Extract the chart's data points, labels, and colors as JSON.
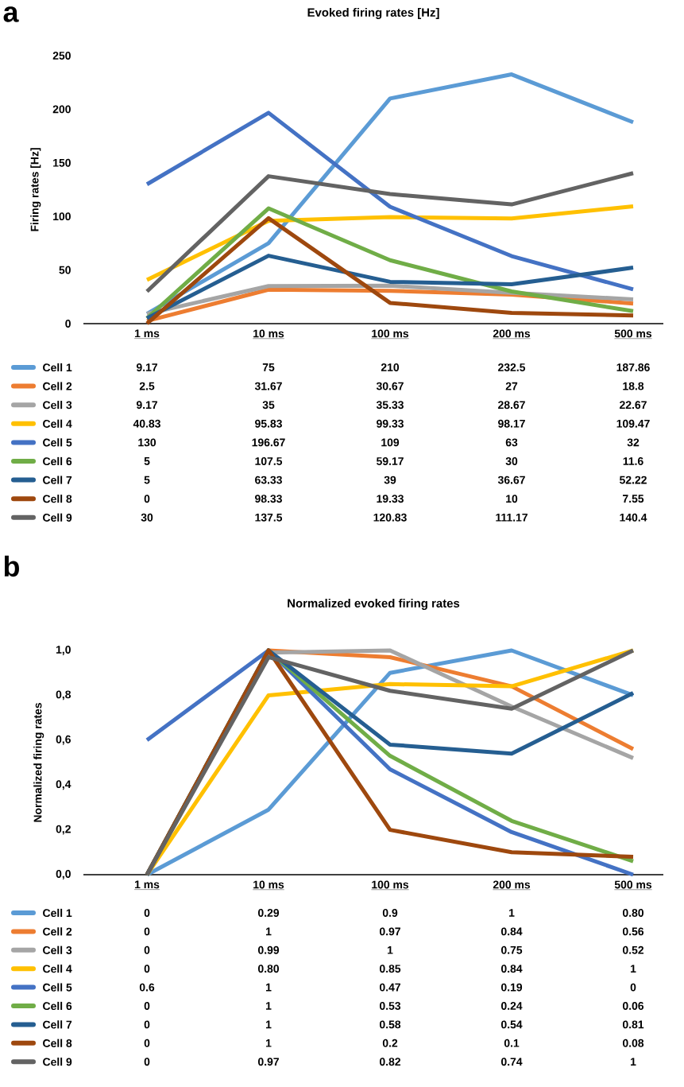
{
  "chart_data": [
    {
      "type": "line",
      "title": "Evoked firing rates [Hz]",
      "ylabel": "Firing rates [Hz]",
      "annotations": [
        "a"
      ],
      "legend": "bottom",
      "categories": [
        "1 ms",
        "10 ms",
        "100 ms",
        "200 ms",
        "500 ms"
      ],
      "ylim": [
        0,
        250
      ],
      "yticks": [
        0,
        50,
        100,
        150,
        200,
        250
      ],
      "series": [
        {
          "name": "Cell 1",
          "color": "#5b9bd5",
          "values": [
            9.17,
            75,
            210,
            232.5,
            187.86
          ],
          "value_labels": [
            "9.17",
            "75",
            "210",
            "232.5",
            "187.86"
          ]
        },
        {
          "name": "Cell 2",
          "color": "#ed7d31",
          "values": [
            2.5,
            31.67,
            30.67,
            27,
            18.8
          ],
          "value_labels": [
            "2.5",
            "31.67",
            "30.67",
            "27",
            "18.8"
          ]
        },
        {
          "name": "Cell 3",
          "color": "#a5a5a5",
          "values": [
            9.17,
            35,
            35.33,
            28.67,
            22.67
          ],
          "value_labels": [
            "9.17",
            "35",
            "35.33",
            "28.67",
            "22.67"
          ]
        },
        {
          "name": "Cell 4",
          "color": "#ffc000",
          "values": [
            40.83,
            95.83,
            99.33,
            98.17,
            109.47
          ],
          "value_labels": [
            "40.83",
            "95.83",
            "99.33",
            "98.17",
            "109.47"
          ]
        },
        {
          "name": "Cell 5",
          "color": "#4472c4",
          "values": [
            130,
            196.67,
            109,
            63,
            32
          ],
          "value_labels": [
            "130",
            "196.67",
            "109",
            "63",
            "32"
          ]
        },
        {
          "name": "Cell 6",
          "color": "#70ad47",
          "values": [
            5,
            107.5,
            59.17,
            30,
            11.6
          ],
          "value_labels": [
            "5",
            "107.5",
            "59.17",
            "30",
            "11.6"
          ]
        },
        {
          "name": "Cell 7",
          "color": "#255e91",
          "values": [
            5,
            63.33,
            39,
            36.67,
            52.22
          ],
          "value_labels": [
            "5",
            "63.33",
            "39",
            "36.67",
            "52.22"
          ]
        },
        {
          "name": "Cell 8",
          "color": "#9e480e",
          "values": [
            0,
            98.33,
            19.33,
            10,
            7.55
          ],
          "value_labels": [
            "0",
            "98.33",
            "19.33",
            "10",
            "7.55"
          ]
        },
        {
          "name": "Cell 9",
          "color": "#636363",
          "values": [
            30,
            137.5,
            120.83,
            111.17,
            140.4
          ],
          "value_labels": [
            "30",
            "137.5",
            "120.83",
            "111.17",
            "140.4"
          ]
        }
      ]
    },
    {
      "type": "line",
      "title": "Normalized evoked firing rates",
      "ylabel": "Normalized firing rates",
      "annotations": [
        "b"
      ],
      "legend": "bottom",
      "categories": [
        "1 ms",
        "10 ms",
        "100 ms",
        "200 ms",
        "500 ms"
      ],
      "ylim": [
        0,
        1
      ],
      "yticks": [
        {
          "value": 0,
          "label": "0,0"
        },
        {
          "value": 0.2,
          "label": "0,2"
        },
        {
          "value": 0.4,
          "label": "0,4"
        },
        {
          "value": 0.6,
          "label": "0,6"
        },
        {
          "value": 0.8,
          "label": "0,8"
        },
        {
          "value": 1,
          "label": "1,0"
        }
      ],
      "series": [
        {
          "name": "Cell 1",
          "color": "#5b9bd5",
          "values": [
            0,
            0.29,
            0.9,
            1,
            0.8
          ],
          "value_labels": [
            "0",
            "0.29",
            "0.9",
            "1",
            "0.80"
          ]
        },
        {
          "name": "Cell 2",
          "color": "#ed7d31",
          "values": [
            0,
            1,
            0.97,
            0.84,
            0.56
          ],
          "value_labels": [
            "0",
            "1",
            "0.97",
            "0.84",
            "0.56"
          ]
        },
        {
          "name": "Cell 3",
          "color": "#a5a5a5",
          "values": [
            0,
            0.99,
            1,
            0.75,
            0.52
          ],
          "value_labels": [
            "0",
            "0.99",
            "1",
            "0.75",
            "0.52"
          ]
        },
        {
          "name": "Cell 4",
          "color": "#ffc000",
          "values": [
            0,
            0.8,
            0.85,
            0.84,
            1
          ],
          "value_labels": [
            "0",
            "0.80",
            "0.85",
            "0.84",
            "1"
          ]
        },
        {
          "name": "Cell 5",
          "color": "#4472c4",
          "values": [
            0.6,
            1,
            0.47,
            0.19,
            0
          ],
          "value_labels": [
            "0.6",
            "1",
            "0.47",
            "0.19",
            "0"
          ]
        },
        {
          "name": "Cell 6",
          "color": "#70ad47",
          "values": [
            0,
            1,
            0.53,
            0.24,
            0.06
          ],
          "value_labels": [
            "0",
            "1",
            "0.53",
            "0.24",
            "0.06"
          ]
        },
        {
          "name": "Cell 7",
          "color": "#255e91",
          "values": [
            0,
            1,
            0.58,
            0.54,
            0.81
          ],
          "value_labels": [
            "0",
            "1",
            "0.58",
            "0.54",
            "0.81"
          ]
        },
        {
          "name": "Cell 8",
          "color": "#9e480e",
          "values": [
            0,
            1,
            0.2,
            0.1,
            0.08
          ],
          "value_labels": [
            "0",
            "1",
            "0.2",
            "0.1",
            "0.08"
          ]
        },
        {
          "name": "Cell 9",
          "color": "#636363",
          "values": [
            0,
            0.97,
            0.82,
            0.74,
            1
          ],
          "value_labels": [
            "0",
            "0.97",
            "0.82",
            "0.74",
            "1"
          ]
        }
      ]
    }
  ]
}
